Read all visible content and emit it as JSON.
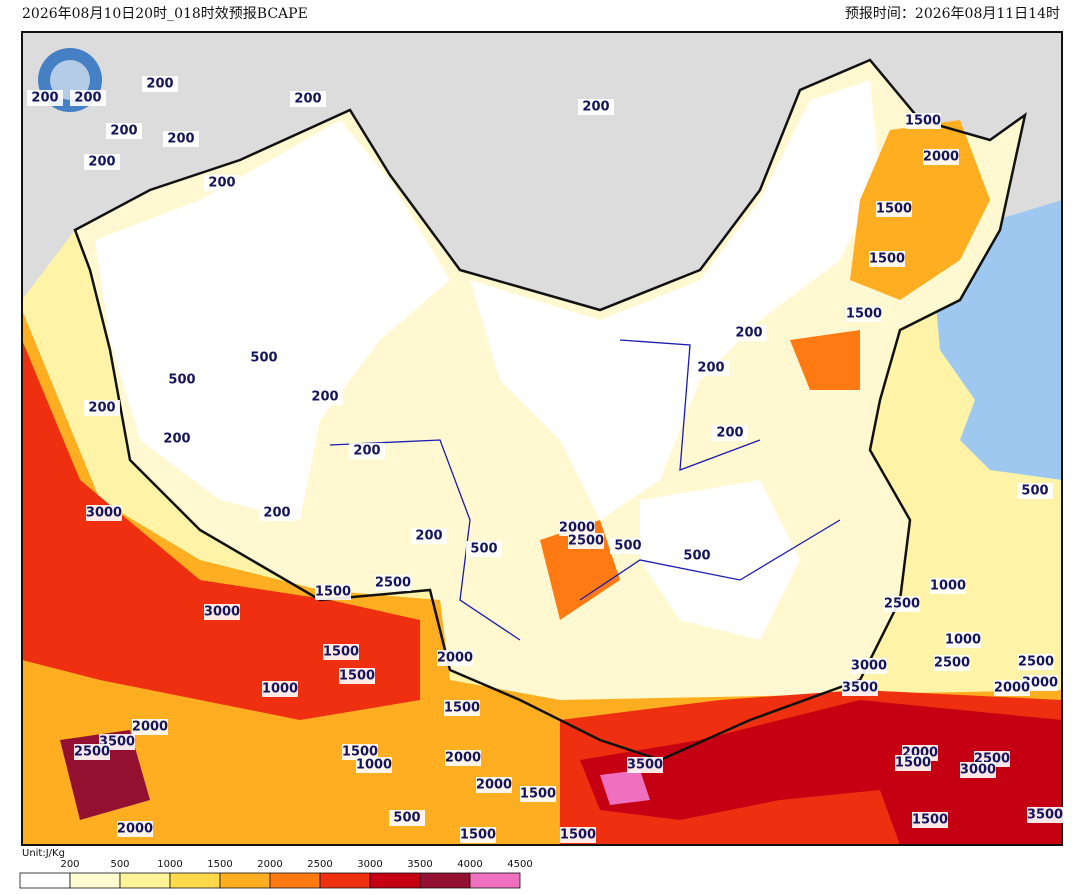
{
  "header": {
    "left": "2026年08月10日20时_018时效预报BCAPE",
    "right": "预报时间：2026年08月11日14时"
  },
  "contour_labels": [
    "200",
    "200",
    "200",
    "200",
    "200",
    "200",
    "200",
    "200",
    "200",
    "500",
    "500",
    "200",
    "200",
    "200",
    "200",
    "200",
    "200",
    "3000",
    "3000",
    "2500",
    "1500",
    "1500",
    "1500",
    "1000",
    "2000",
    "3500",
    "2500",
    "2000",
    "1500",
    "1000",
    "1500",
    "2000",
    "2000",
    "2000",
    "1500",
    "500",
    "1500",
    "1500",
    "3500",
    "2000",
    "2500",
    "500",
    "500",
    "500",
    "200",
    "200",
    "200",
    "1500",
    "2000",
    "1500",
    "1500",
    "1500",
    "500",
    "1000",
    "2500",
    "1000",
    "2500",
    "3000",
    "3500",
    "2500",
    "3000",
    "2000",
    "2000",
    "2500",
    "3000",
    "1500",
    "1500",
    "3500"
  ],
  "colorbar": {
    "unit": "Unit:J/Kg",
    "ticks": [
      200,
      500,
      1000,
      1500,
      2000,
      2500,
      3000,
      3500,
      4000,
      4500
    ],
    "colors": [
      "#ffffff",
      "#fffcd2",
      "#fff39a",
      "#ffd84c",
      "#ffae22",
      "#ff7a12",
      "#ef3010",
      "#c40012",
      "#941030",
      "#f070c0"
    ]
  }
}
